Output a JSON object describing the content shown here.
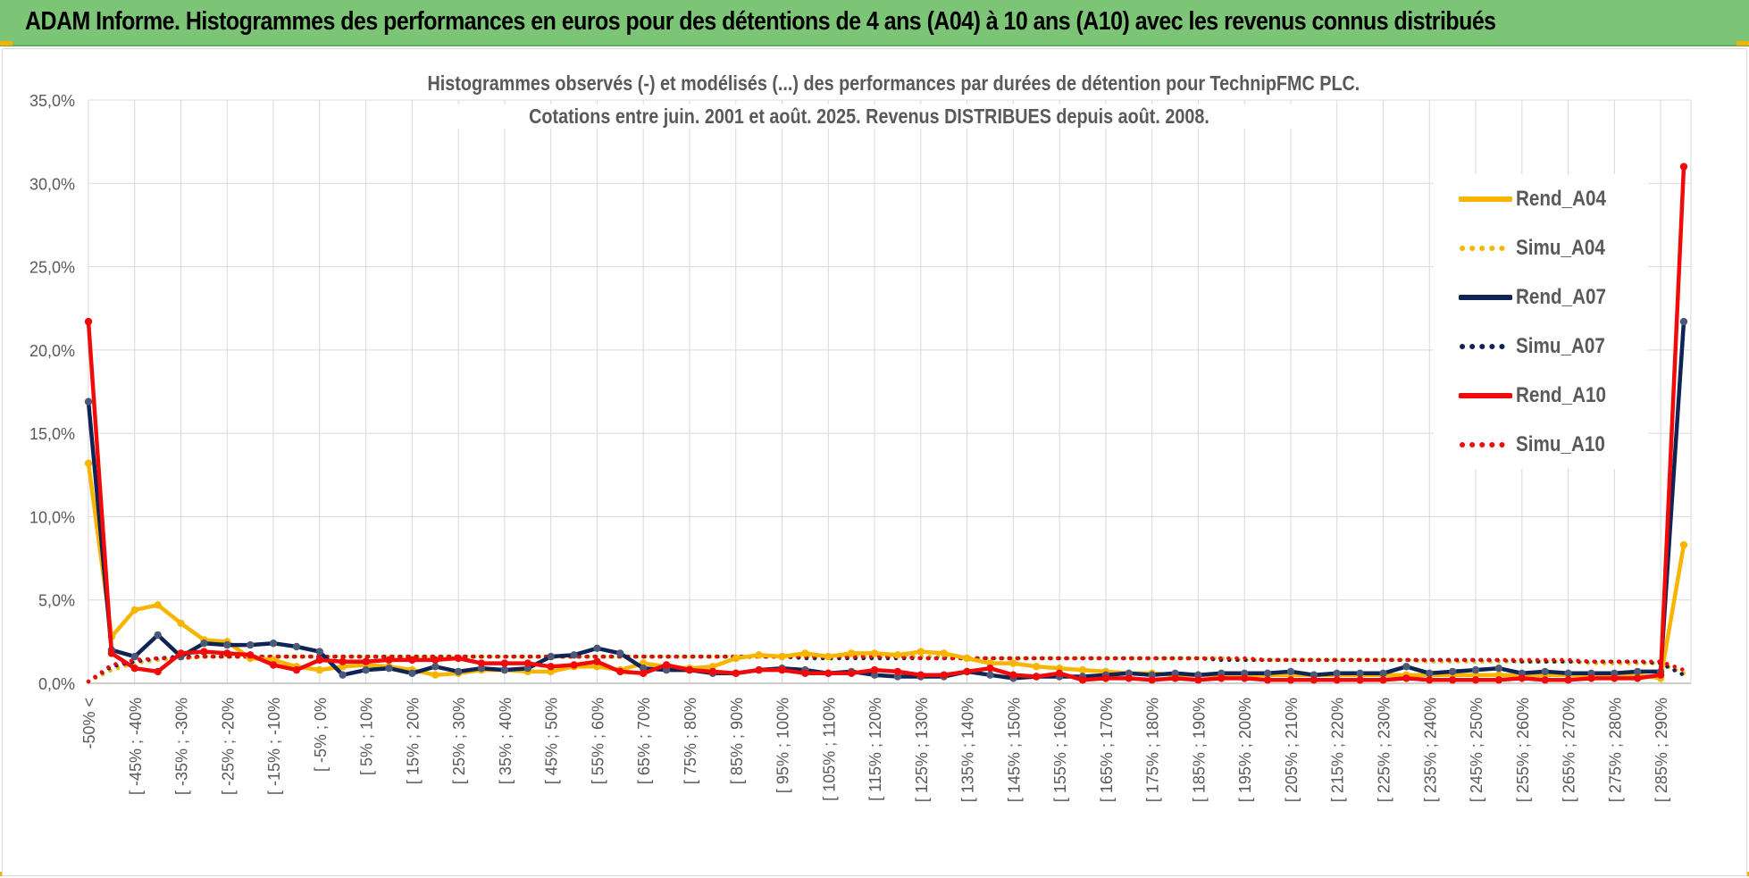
{
  "banner": {
    "title": "ADAM Informe. Histogrammes des performances en euros pour des détentions de 4 ans (A04) à 10 ans (A10) avec les revenus connus distribués"
  },
  "colors": {
    "banner": "#7cc576",
    "corner_marks": "#f2b400",
    "A04": "#f7b500",
    "A07": "#0f2355",
    "A07_marker": "#4a5a78",
    "A10": "#f00a0a",
    "grid": "#d9d9d9",
    "text": "#595959"
  },
  "chart_data": {
    "type": "line",
    "title_lines": [
      "Histogrammes observés (-) et modélisés (...) des performances par durées de détention pour TechnipFMC PLC.",
      "Cotations entre juin. 2001 et août. 2025. Revenus DISTRIBUES depuis août. 2008."
    ],
    "xlabel": "",
    "ylabel": "",
    "ylim": [
      0,
      35
    ],
    "y_ticks": [
      "0,0%",
      "5,0%",
      "10,0%",
      "15,0%",
      "20,0%",
      "25,0%",
      "30,0%",
      "35,0%"
    ],
    "y_tick_values": [
      0,
      5,
      10,
      15,
      20,
      25,
      30,
      35
    ],
    "grid": true,
    "legend_position": "right",
    "n_bins": 70,
    "x_labels": [
      {
        "bin": 0,
        "text": "-50% <"
      },
      {
        "bin": 2,
        "text": "[ -45% ; -40%"
      },
      {
        "bin": 4,
        "text": "[ -35% ; -30%"
      },
      {
        "bin": 6,
        "text": "[ -25% ; -20%"
      },
      {
        "bin": 8,
        "text": "[ -15% ; -10%"
      },
      {
        "bin": 10,
        "text": "[ -5% ; 0%"
      },
      {
        "bin": 12,
        "text": "[ 5% ; 10%"
      },
      {
        "bin": 14,
        "text": "[ 15% ; 20%"
      },
      {
        "bin": 16,
        "text": "[ 25% ; 30%"
      },
      {
        "bin": 18,
        "text": "[ 35% ; 40%"
      },
      {
        "bin": 20,
        "text": "[ 45% ; 50%"
      },
      {
        "bin": 22,
        "text": "[ 55% ; 60%"
      },
      {
        "bin": 24,
        "text": "[ 65% ; 70%"
      },
      {
        "bin": 26,
        "text": "[ 75% ; 80%"
      },
      {
        "bin": 28,
        "text": "[ 85% ; 90%"
      },
      {
        "bin": 30,
        "text": "[ 95% ; 100%"
      },
      {
        "bin": 32,
        "text": "[ 105% ; 110%"
      },
      {
        "bin": 34,
        "text": "[ 115% ; 120%"
      },
      {
        "bin": 36,
        "text": "[ 125% ; 130%"
      },
      {
        "bin": 38,
        "text": "[ 135% ; 140%"
      },
      {
        "bin": 40,
        "text": "[ 145% ; 150%"
      },
      {
        "bin": 42,
        "text": "[ 155% ; 160%"
      },
      {
        "bin": 44,
        "text": "[ 165% ; 170%"
      },
      {
        "bin": 46,
        "text": "[ 175% ; 180%"
      },
      {
        "bin": 48,
        "text": "[ 185% ; 190%"
      },
      {
        "bin": 50,
        "text": "[ 195% ; 200%"
      },
      {
        "bin": 52,
        "text": "[ 205% ; 210%"
      },
      {
        "bin": 54,
        "text": "[ 215% ; 220%"
      },
      {
        "bin": 56,
        "text": "[ 225% ; 230%"
      },
      {
        "bin": 58,
        "text": "[ 235% ; 240%"
      },
      {
        "bin": 60,
        "text": "[ 245% ; 250%"
      },
      {
        "bin": 62,
        "text": "[ 255% ; 260%"
      },
      {
        "bin": 64,
        "text": "[ 265% ; 270%"
      },
      {
        "bin": 66,
        "text": "[ 275% ; 280%"
      },
      {
        "bin": 68,
        "text": "[ 285% ; 290%"
      }
    ],
    "series": [
      {
        "name": "Rend_A04",
        "key": "A04",
        "style": "solid",
        "values": [
          13.2,
          2.8,
          4.4,
          4.7,
          3.6,
          2.6,
          2.5,
          1.5,
          1.4,
          1.0,
          0.8,
          1.0,
          1.1,
          1.0,
          0.8,
          0.5,
          0.6,
          0.8,
          0.8,
          0.7,
          0.7,
          1.0,
          1.0,
          0.8,
          1.2,
          1.0,
          0.9,
          1.0,
          1.5,
          1.7,
          1.6,
          1.8,
          1.6,
          1.8,
          1.8,
          1.7,
          1.9,
          1.8,
          1.5,
          1.2,
          1.2,
          1.0,
          0.9,
          0.8,
          0.7,
          0.6,
          0.6,
          0.5,
          0.5,
          0.5,
          0.5,
          0.5,
          0.5,
          0.5,
          0.5,
          0.5,
          0.5,
          0.5,
          0.5,
          0.5,
          0.5,
          0.5,
          0.5,
          0.5,
          0.5,
          0.5,
          0.5,
          0.5,
          0.3,
          8.3
        ]
      },
      {
        "name": "Simu_A04",
        "key": "A04",
        "style": "dotted",
        "values": [
          0.1,
          0.8,
          1.2,
          1.4,
          1.5,
          1.6,
          1.6,
          1.6,
          1.6,
          1.6,
          1.6,
          1.6,
          1.6,
          1.6,
          1.6,
          1.6,
          1.6,
          1.6,
          1.6,
          1.6,
          1.6,
          1.6,
          1.6,
          1.6,
          1.6,
          1.6,
          1.6,
          1.6,
          1.6,
          1.6,
          1.6,
          1.6,
          1.6,
          1.6,
          1.6,
          1.6,
          1.6,
          1.6,
          1.5,
          1.5,
          1.5,
          1.5,
          1.5,
          1.5,
          1.5,
          1.5,
          1.5,
          1.5,
          1.5,
          1.5,
          1.4,
          1.4,
          1.4,
          1.4,
          1.4,
          1.4,
          1.4,
          1.4,
          1.3,
          1.3,
          1.3,
          1.3,
          1.3,
          1.3,
          1.3,
          1.2,
          1.2,
          1.2,
          1.2,
          0.6
        ]
      },
      {
        "name": "Rend_A07",
        "key": "A07",
        "style": "solid",
        "values": [
          16.9,
          2.0,
          1.6,
          2.9,
          1.6,
          2.4,
          2.3,
          2.3,
          2.4,
          2.2,
          1.9,
          0.5,
          0.8,
          0.9,
          0.6,
          1.0,
          0.7,
          0.9,
          0.8,
          0.9,
          1.6,
          1.7,
          2.1,
          1.8,
          0.9,
          0.8,
          0.8,
          0.6,
          0.6,
          0.8,
          0.9,
          0.8,
          0.6,
          0.7,
          0.5,
          0.4,
          0.4,
          0.4,
          0.7,
          0.5,
          0.3,
          0.4,
          0.4,
          0.4,
          0.5,
          0.6,
          0.5,
          0.6,
          0.5,
          0.6,
          0.6,
          0.6,
          0.7,
          0.5,
          0.6,
          0.6,
          0.6,
          1.0,
          0.6,
          0.7,
          0.8,
          0.9,
          0.6,
          0.7,
          0.6,
          0.6,
          0.6,
          0.7,
          0.7,
          21.7
        ]
      },
      {
        "name": "Simu_A07",
        "key": "A07",
        "style": "dotted",
        "values": [
          0.1,
          1.0,
          1.3,
          1.5,
          1.6,
          1.6,
          1.6,
          1.6,
          1.6,
          1.6,
          1.6,
          1.6,
          1.6,
          1.6,
          1.6,
          1.6,
          1.6,
          1.6,
          1.6,
          1.6,
          1.6,
          1.6,
          1.6,
          1.6,
          1.6,
          1.6,
          1.6,
          1.6,
          1.6,
          1.6,
          1.6,
          1.5,
          1.5,
          1.5,
          1.5,
          1.5,
          1.5,
          1.5,
          1.5,
          1.5,
          1.5,
          1.5,
          1.5,
          1.5,
          1.5,
          1.5,
          1.5,
          1.5,
          1.5,
          1.4,
          1.4,
          1.4,
          1.4,
          1.4,
          1.4,
          1.4,
          1.4,
          1.4,
          1.4,
          1.4,
          1.4,
          1.4,
          1.3,
          1.3,
          1.3,
          1.3,
          1.3,
          1.3,
          1.2,
          0.5
        ]
      },
      {
        "name": "Rend_A10",
        "key": "A10",
        "style": "solid",
        "values": [
          21.7,
          1.8,
          0.9,
          0.7,
          1.8,
          1.9,
          1.8,
          1.7,
          1.1,
          0.8,
          1.4,
          1.3,
          1.3,
          1.4,
          1.4,
          1.4,
          1.5,
          1.2,
          1.2,
          1.2,
          1.0,
          1.1,
          1.3,
          0.7,
          0.6,
          1.1,
          0.8,
          0.7,
          0.6,
          0.8,
          0.8,
          0.6,
          0.6,
          0.6,
          0.8,
          0.7,
          0.5,
          0.5,
          0.7,
          0.9,
          0.5,
          0.4,
          0.6,
          0.2,
          0.3,
          0.3,
          0.2,
          0.3,
          0.2,
          0.3,
          0.3,
          0.2,
          0.2,
          0.2,
          0.2,
          0.2,
          0.2,
          0.3,
          0.2,
          0.2,
          0.2,
          0.2,
          0.3,
          0.2,
          0.2,
          0.3,
          0.3,
          0.3,
          0.5,
          31.0
        ]
      },
      {
        "name": "Simu_A10",
        "key": "A10",
        "style": "dotted",
        "values": [
          0.1,
          1.1,
          1.4,
          1.5,
          1.5,
          1.6,
          1.6,
          1.6,
          1.6,
          1.6,
          1.6,
          1.6,
          1.6,
          1.6,
          1.6,
          1.6,
          1.6,
          1.6,
          1.6,
          1.6,
          1.6,
          1.6,
          1.6,
          1.6,
          1.6,
          1.6,
          1.6,
          1.6,
          1.6,
          1.6,
          1.6,
          1.6,
          1.6,
          1.6,
          1.6,
          1.6,
          1.5,
          1.5,
          1.5,
          1.5,
          1.5,
          1.5,
          1.5,
          1.5,
          1.5,
          1.5,
          1.5,
          1.5,
          1.5,
          1.5,
          1.5,
          1.4,
          1.4,
          1.4,
          1.4,
          1.4,
          1.4,
          1.4,
          1.4,
          1.4,
          1.4,
          1.4,
          1.4,
          1.4,
          1.4,
          1.3,
          1.3,
          1.3,
          1.3,
          0.8
        ]
      }
    ]
  }
}
